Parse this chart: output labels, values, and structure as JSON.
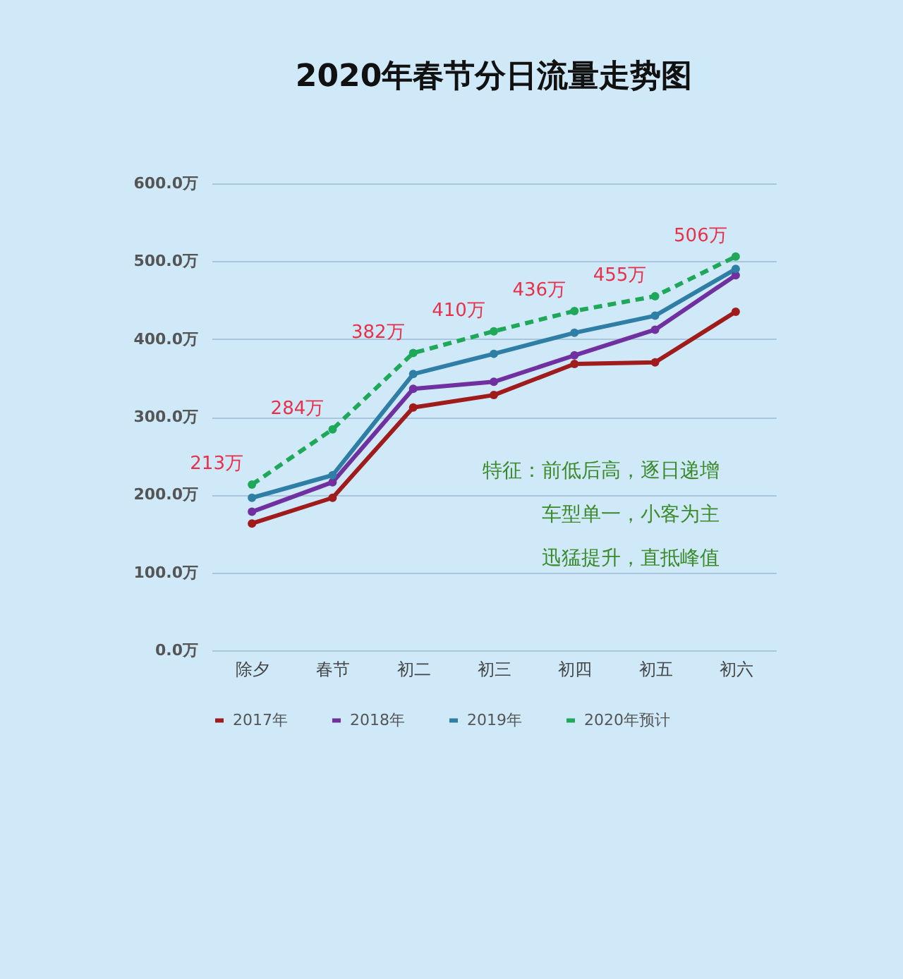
{
  "chart_data": {
    "type": "line",
    "title": "2020年春节分日流量走势图",
    "categories": [
      "除夕",
      "春节",
      "初二",
      "初三",
      "初四",
      "初五",
      "初六"
    ],
    "series": [
      {
        "name": "2017年",
        "color": "#a01c1c",
        "values": [
          163,
          196,
          312,
          328,
          368,
          370,
          435
        ]
      },
      {
        "name": "2018年",
        "color": "#7030a0",
        "values": [
          178,
          216,
          336,
          345,
          379,
          412,
          482
        ]
      },
      {
        "name": "2019年",
        "color": "#2e7ea6",
        "values": [
          196,
          225,
          355,
          381,
          408,
          430,
          490
        ]
      },
      {
        "name": "2020年预计",
        "color": "#1fa85a",
        "line_style": "dashed",
        "values": [
          213,
          284,
          382,
          410,
          436,
          455,
          506
        ],
        "value_labels": [
          "213万",
          "284万",
          "382万",
          "410万",
          "436万",
          "455万",
          "506万"
        ]
      }
    ],
    "ylim": [
      0,
      600
    ],
    "yticks": [
      {
        "value": 0,
        "label": "0.0万"
      },
      {
        "value": 100,
        "label": "100.0万"
      },
      {
        "value": 200,
        "label": "200.0万"
      },
      {
        "value": 300,
        "label": "300.0万"
      },
      {
        "value": 400,
        "label": "400.0万"
      },
      {
        "value": 500,
        "label": "500.0万"
      },
      {
        "value": 600,
        "label": "600.0万"
      }
    ],
    "grid": "y",
    "legend": "bottom",
    "marker": "circle",
    "line_style": "solid",
    "annotations": [
      "特征：前低后高，逐日递增",
      "车型单一，小客为主",
      "迅猛提升，直抵峰值"
    ]
  }
}
